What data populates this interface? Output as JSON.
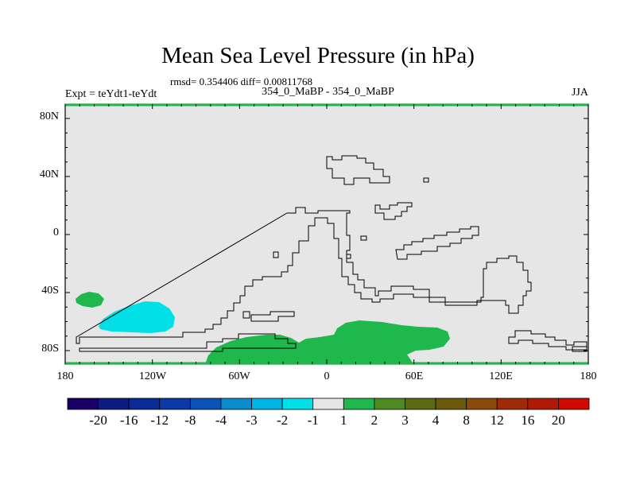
{
  "title": "Mean Sea Level Pressure (in hPa)",
  "stats": "rmsd= 0.354406 diff= 0.00811768",
  "subtitle": "354_0_MaBP - 354_0_MaBP",
  "expt_label": "Expt = teYdt1-teYdt",
  "season": "JJA",
  "map": {
    "lat_labels": [
      "80N",
      "40N",
      "0",
      "40S",
      "80S"
    ],
    "lon_labels": [
      "180",
      "120W",
      "60W",
      "0",
      "60E",
      "120E",
      "180"
    ],
    "lat_values": [
      80,
      40,
      0,
      -40,
      -80
    ],
    "lon_values": [
      -180,
      -120,
      -60,
      0,
      60,
      120,
      180
    ],
    "background_color": "#e6e6e6",
    "coast_color": "#000000"
  },
  "colorbar": {
    "labels": [
      "-20",
      "-16",
      "-12",
      "-8",
      "-4",
      "-3",
      "-2",
      "-1",
      "1",
      "2",
      "3",
      "4",
      "8",
      "12",
      "16",
      "20"
    ],
    "colors": [
      "#1a0066",
      "#0d1a80",
      "#0a2a99",
      "#0b3aa6",
      "#0b52b8",
      "#0a8ccc",
      "#00b4e6",
      "#00e0e6",
      "#e6e6e6",
      "#1fb84d",
      "#4d8a1f",
      "#5a6b14",
      "#6b5a0a",
      "#8a4a0a",
      "#9e2a08",
      "#b01a05",
      "#d10a00"
    ]
  },
  "anomalies": [
    {
      "name": "positive-anomaly-south-pacific",
      "color": "#1fb84d",
      "value_range": "1 to 2"
    },
    {
      "name": "negative-anomaly-south-pacific",
      "color": "#00e0e6",
      "value_range": "-2 to -1"
    },
    {
      "name": "positive-anomaly-south-atlantic-indian",
      "color": "#1fb84d",
      "value_range": "1 to 2"
    }
  ]
}
